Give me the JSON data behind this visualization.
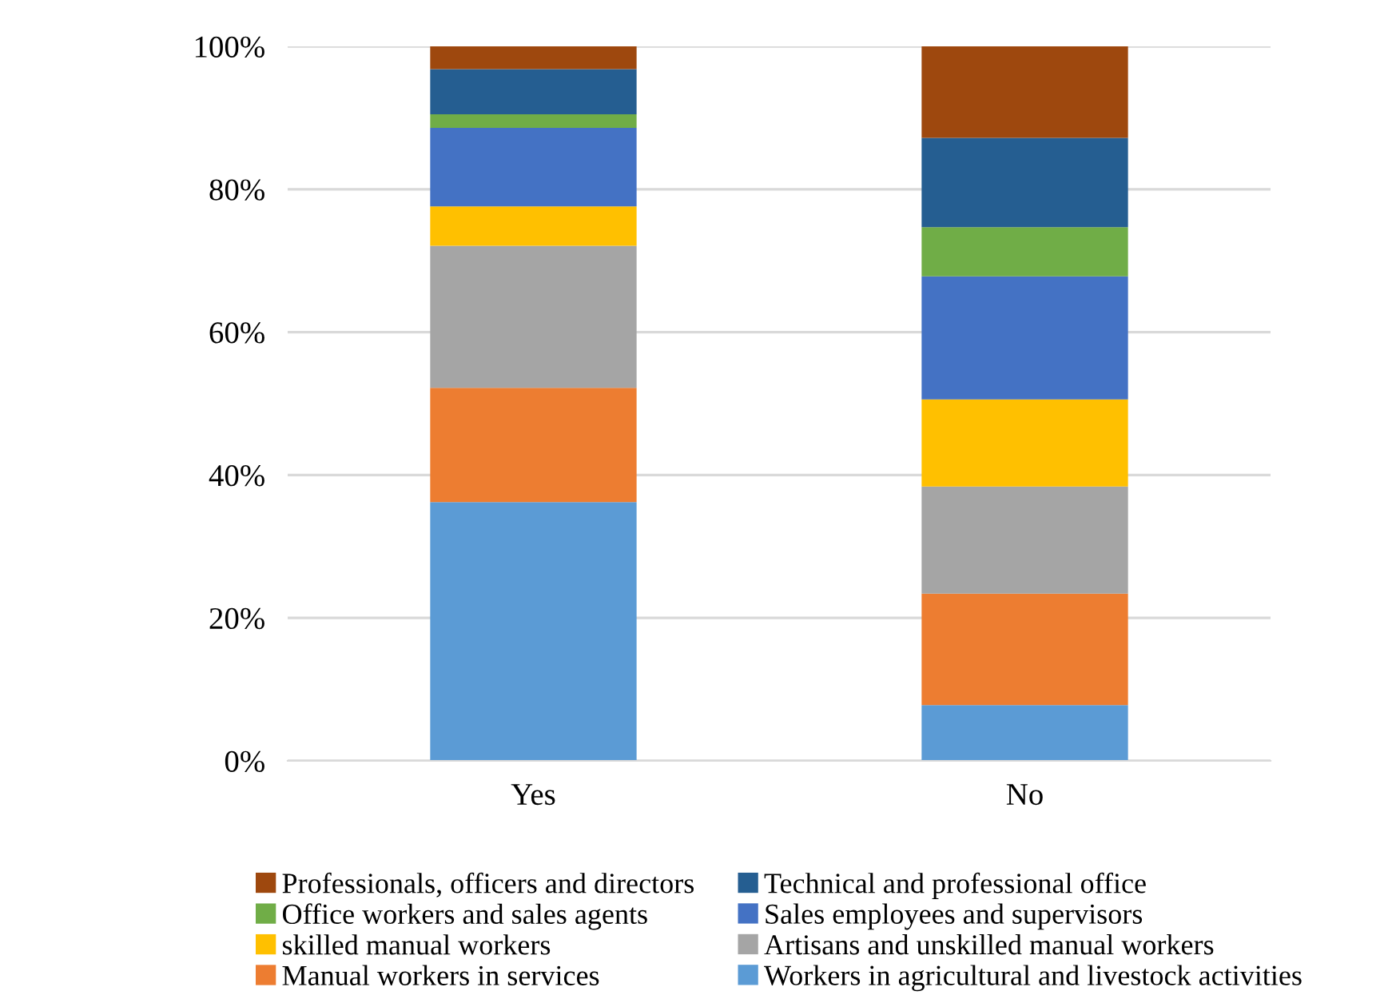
{
  "chart_data": {
    "type": "bar",
    "stacked": true,
    "categories": [
      "Yes",
      "No"
    ],
    "series": [
      {
        "name": "Workers in agricultural and livestock activities",
        "color": "#5b9bd5",
        "values": [
          36.2,
          7.8
        ]
      },
      {
        "name": "Manual workers in services",
        "color": "#ed7d31",
        "values": [
          16.0,
          15.6
        ]
      },
      {
        "name": "Artisans and unskilled manual workers",
        "color": "#a5a5a5",
        "values": [
          19.9,
          15.0
        ]
      },
      {
        "name": "skilled manual workers",
        "color": "#ffc000",
        "values": [
          5.5,
          12.2
        ]
      },
      {
        "name": "Sales employees and supervisors",
        "color": "#4472c4",
        "values": [
          11.0,
          17.2
        ]
      },
      {
        "name": "Office workers and sales agents",
        "color": "#70ad47",
        "values": [
          1.9,
          6.9
        ]
      },
      {
        "name": "Technical and professional office",
        "color": "#255e91",
        "values": [
          6.3,
          12.5
        ]
      },
      {
        "name": "Professionals, officers and directors",
        "color": "#9e480e",
        "values": [
          3.2,
          12.8
        ]
      }
    ],
    "ylim": [
      0,
      100
    ],
    "yticks": [
      {
        "value": 0,
        "label": "0%"
      },
      {
        "value": 20,
        "label": "20%"
      },
      {
        "value": 40,
        "label": "40%"
      },
      {
        "value": 60,
        "label": "60%"
      },
      {
        "value": 80,
        "label": "80%"
      },
      {
        "value": 100,
        "label": "100%"
      }
    ],
    "grid": "y",
    "legend": "bottom"
  }
}
